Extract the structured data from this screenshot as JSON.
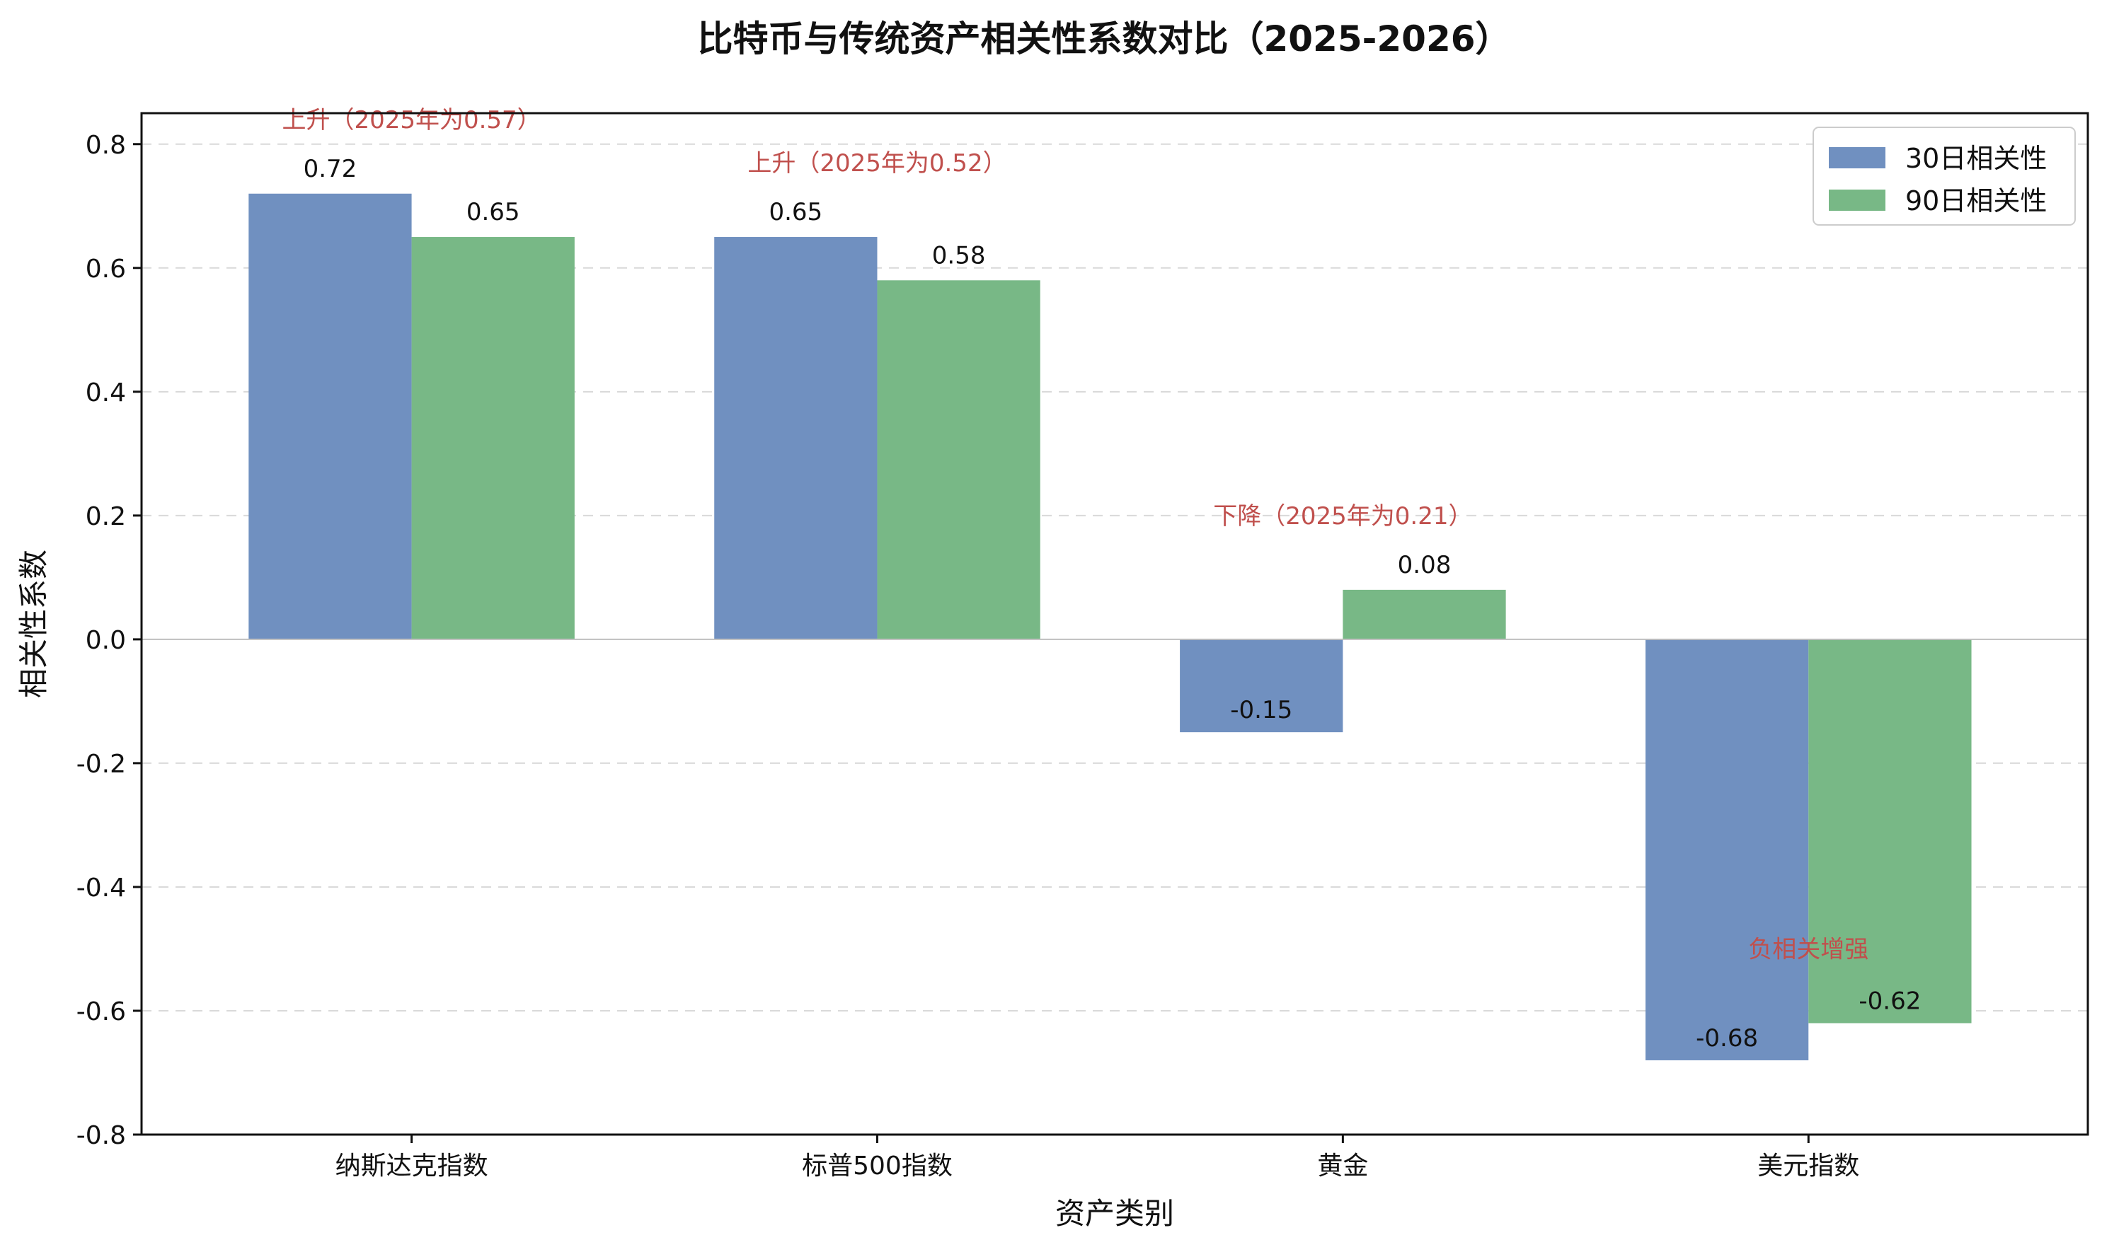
{
  "chart_data": {
    "type": "bar",
    "title": "比特币与传统资产相关性系数对比（2025-2026）",
    "xlabel": "资产类别",
    "ylabel": "相关性系数",
    "categories": [
      "纳斯达克指数",
      "标普500指数",
      "黄金",
      "美元指数"
    ],
    "series": [
      {
        "name": "30日相关性",
        "values": [
          0.72,
          0.65,
          -0.15,
          -0.68
        ],
        "color": "#7090c0"
      },
      {
        "name": "90日相关性",
        "values": [
          0.65,
          0.58,
          0.08,
          -0.62
        ],
        "color": "#78b886"
      }
    ],
    "data_labels": [
      [
        "0.72",
        "0.65",
        "-0.15",
        "-0.68"
      ],
      [
        "0.65",
        "0.58",
        "0.08",
        "-0.62"
      ]
    ],
    "ylim": [
      -0.8,
      0.85
    ],
    "yticks": [
      -0.8,
      -0.6,
      -0.4,
      -0.2,
      0.0,
      0.2,
      0.4,
      0.6,
      0.8
    ],
    "ytick_labels": [
      "-0.8",
      "-0.6",
      "-0.4",
      "-0.2",
      "0.0",
      "0.2",
      "0.4",
      "0.6",
      "0.8"
    ],
    "grid": true,
    "legend_position": "top-right",
    "annotations": [
      {
        "category_index": 0,
        "y": 0.84,
        "text": "上升（2025年为0.57）"
      },
      {
        "category_index": 1,
        "y": 0.77,
        "text": "上升（2025年为0.52）"
      },
      {
        "category_index": 2,
        "y": 0.2,
        "text": "下降（2025年为0.21）"
      },
      {
        "category_index": 3,
        "y": -0.5,
        "text": "负相关增强"
      }
    ],
    "annotation_color": "#c0504d"
  }
}
